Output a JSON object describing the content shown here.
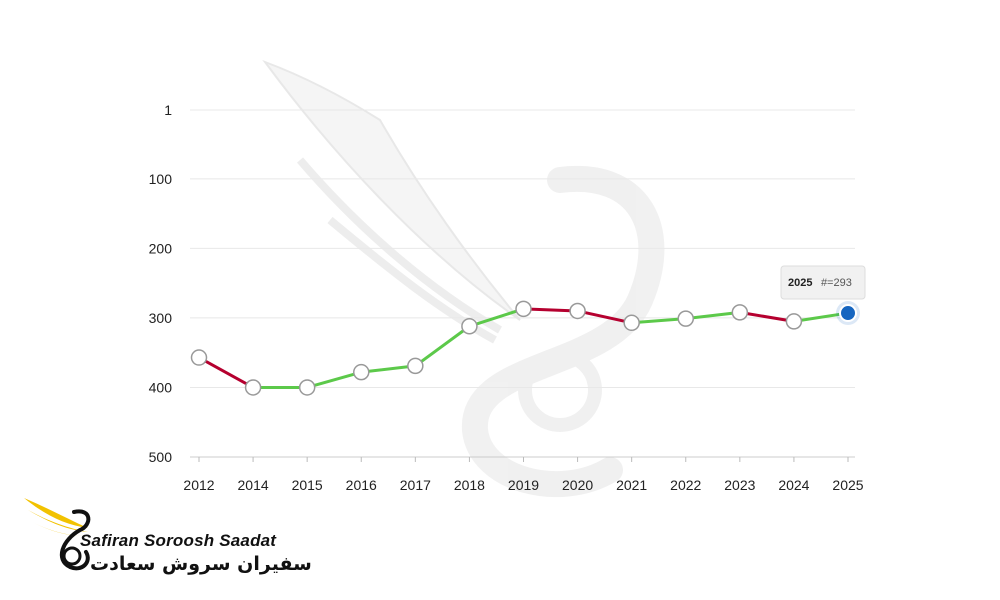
{
  "chart_data": {
    "type": "line",
    "categories": [
      "2012",
      "2014",
      "2015",
      "2016",
      "2017",
      "2018",
      "2019",
      "2020",
      "2021",
      "2022",
      "2023",
      "2024",
      "2025"
    ],
    "values": [
      357,
      400,
      400,
      378,
      369,
      312,
      287,
      290,
      307,
      301,
      292,
      305,
      293
    ],
    "yticks": [
      1,
      100,
      200,
      300,
      400,
      500
    ],
    "ylim": [
      1,
      500
    ],
    "y_inverted": true,
    "grid": true,
    "colors": {
      "improving": "#5cc94a",
      "worsening": "#b5002f",
      "marker_fill": "#ffffff",
      "marker_stroke": "#999999",
      "highlight": "#1565c0"
    },
    "tooltip": {
      "year": "2025",
      "label": "#=293"
    }
  },
  "brand": {
    "name_en": "Safiran Soroosh Saadat",
    "name_fa": "سفیران سروش سعادت",
    "logo_colors": [
      "#f2c200",
      "#111111"
    ]
  }
}
